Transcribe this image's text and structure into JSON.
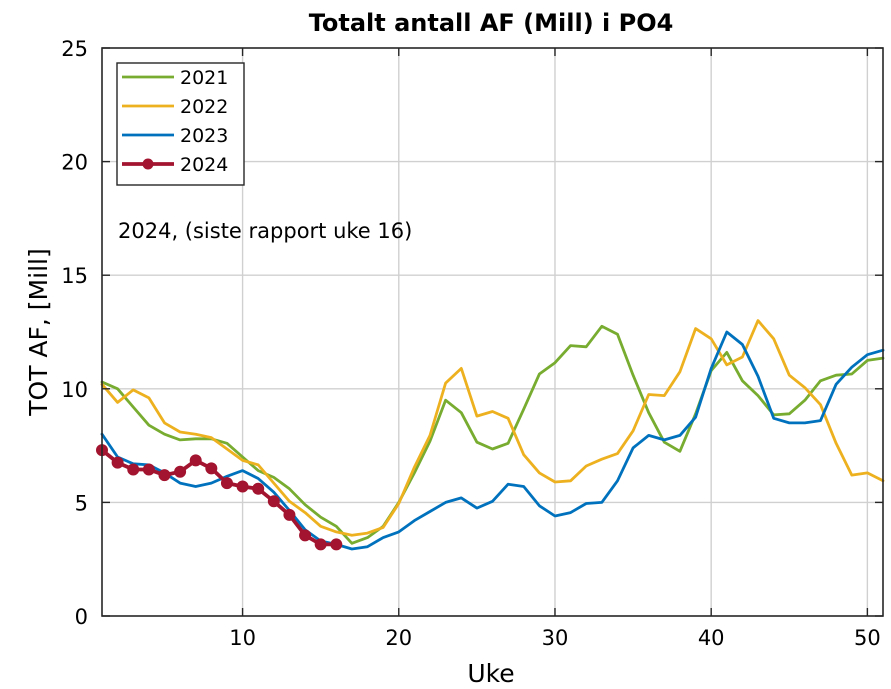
{
  "chart_data": {
    "type": "line",
    "title": "Totalt antall AF (Mill) i PO4",
    "xlabel": "Uke",
    "ylabel": "TOT AF, [Mill]",
    "xlim": [
      1,
      51
    ],
    "ylim": [
      0,
      25
    ],
    "xticks": [
      10,
      20,
      30,
      40,
      50
    ],
    "yticks": [
      0,
      5,
      10,
      15,
      20,
      25
    ],
    "grid": true,
    "legend_position": "top-left",
    "annotation": "2024, (siste rapport uke 16)",
    "series": [
      {
        "name": "2021",
        "color": "#77AC30",
        "marker": false,
        "x": [
          1,
          2,
          3,
          4,
          5,
          6,
          7,
          8,
          9,
          10,
          11,
          12,
          13,
          14,
          15,
          16,
          17,
          18,
          19,
          20,
          21,
          22,
          23,
          24,
          25,
          26,
          27,
          28,
          29,
          30,
          31,
          32,
          33,
          34,
          35,
          36,
          37,
          38,
          39,
          40,
          41,
          42,
          43,
          44,
          45,
          46,
          47,
          48,
          49,
          50,
          51
        ],
        "values": [
          10.3,
          10.0,
          9.2,
          8.4,
          8.0,
          7.75,
          7.8,
          7.8,
          7.6,
          7.0,
          6.4,
          6.1,
          5.6,
          4.9,
          4.35,
          3.95,
          3.2,
          3.45,
          3.95,
          5.0,
          6.3,
          7.7,
          9.5,
          8.95,
          7.65,
          7.35,
          7.6,
          9.1,
          10.65,
          11.15,
          11.9,
          11.85,
          12.75,
          12.4,
          10.6,
          8.95,
          7.65,
          7.25,
          8.9,
          10.8,
          11.6,
          10.35,
          9.7,
          8.85,
          8.9,
          9.5,
          10.35,
          10.6,
          10.65,
          11.25,
          11.35
        ]
      },
      {
        "name": "2022",
        "color": "#EDB120",
        "marker": false,
        "x": [
          1,
          2,
          3,
          4,
          5,
          6,
          7,
          8,
          9,
          10,
          11,
          12,
          13,
          14,
          15,
          16,
          17,
          18,
          19,
          20,
          21,
          22,
          23,
          24,
          25,
          26,
          27,
          28,
          29,
          30,
          31,
          32,
          33,
          34,
          35,
          36,
          37,
          38,
          39,
          40,
          41,
          42,
          43,
          44,
          45,
          46,
          47,
          48,
          49,
          50,
          51
        ],
        "values": [
          10.2,
          9.4,
          9.95,
          9.6,
          8.5,
          8.1,
          8.0,
          7.85,
          7.35,
          6.85,
          6.65,
          5.85,
          5.05,
          4.55,
          3.95,
          3.7,
          3.55,
          3.65,
          3.9,
          4.95,
          6.55,
          7.95,
          10.25,
          10.9,
          8.8,
          9.0,
          8.7,
          7.1,
          6.3,
          5.9,
          5.95,
          6.6,
          6.9,
          7.15,
          8.15,
          9.75,
          9.7,
          10.75,
          12.65,
          12.2,
          11.05,
          11.4,
          13.0,
          12.2,
          10.6,
          10.05,
          9.3,
          7.6,
          6.2,
          6.3,
          5.95
        ]
      },
      {
        "name": "2023",
        "color": "#0072BD",
        "marker": false,
        "x": [
          1,
          2,
          3,
          4,
          5,
          6,
          7,
          8,
          9,
          10,
          11,
          12,
          13,
          14,
          15,
          16,
          17,
          18,
          19,
          20,
          21,
          22,
          23,
          24,
          25,
          26,
          27,
          28,
          29,
          30,
          31,
          32,
          33,
          34,
          35,
          36,
          37,
          38,
          39,
          40,
          41,
          42,
          43,
          44,
          45,
          46,
          47,
          48,
          49,
          50,
          51
        ],
        "values": [
          8.0,
          7.0,
          6.7,
          6.65,
          6.3,
          5.85,
          5.7,
          5.85,
          6.15,
          6.4,
          6.05,
          5.45,
          4.65,
          3.8,
          3.3,
          3.15,
          2.95,
          3.05,
          3.45,
          3.7,
          4.2,
          4.6,
          5.0,
          5.2,
          4.75,
          5.05,
          5.8,
          5.7,
          4.85,
          4.4,
          4.55,
          4.95,
          5.0,
          5.95,
          7.4,
          7.95,
          7.75,
          7.95,
          8.75,
          10.9,
          12.5,
          11.95,
          10.55,
          8.7,
          8.5,
          8.5,
          8.6,
          10.2,
          10.95,
          11.5,
          11.7
        ]
      },
      {
        "name": "2024",
        "color": "#A2142F",
        "marker": true,
        "x": [
          1,
          2,
          3,
          4,
          5,
          6,
          7,
          8,
          9,
          10,
          11,
          12,
          13,
          14,
          15,
          16
        ],
        "values": [
          7.3,
          6.75,
          6.45,
          6.45,
          6.2,
          6.35,
          6.85,
          6.5,
          5.85,
          5.7,
          5.6,
          5.05,
          4.45,
          3.55,
          3.15,
          3.15
        ]
      }
    ]
  }
}
